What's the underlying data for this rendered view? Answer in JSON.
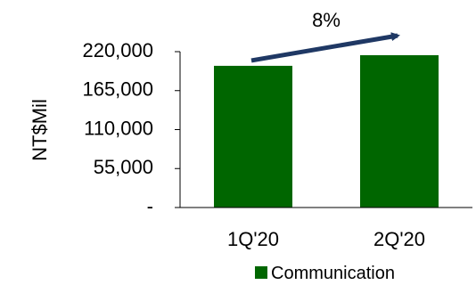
{
  "chart_data": {
    "type": "bar",
    "categories": [
      "1Q'20",
      "2Q'20"
    ],
    "series": [
      {
        "name": "Communication",
        "values": [
          200000,
          215000
        ]
      }
    ],
    "ylabel": "NT$Mil",
    "ylim": [
      0,
      220000
    ],
    "yticks": [
      {
        "value": 0,
        "label": "-"
      },
      {
        "value": 55000,
        "label": "55,000"
      },
      {
        "value": 110000,
        "label": "110,000"
      },
      {
        "value": 165000,
        "label": "165,000"
      },
      {
        "value": 220000,
        "label": "220,000"
      }
    ],
    "annotation": {
      "text": "8%",
      "from": "1Q'20",
      "to": "2Q'20"
    },
    "grid": false,
    "legend_position": "bottom-right",
    "colors": {
      "bar": "#006600",
      "arrow": "#1F3864",
      "axis": "#000000"
    }
  }
}
